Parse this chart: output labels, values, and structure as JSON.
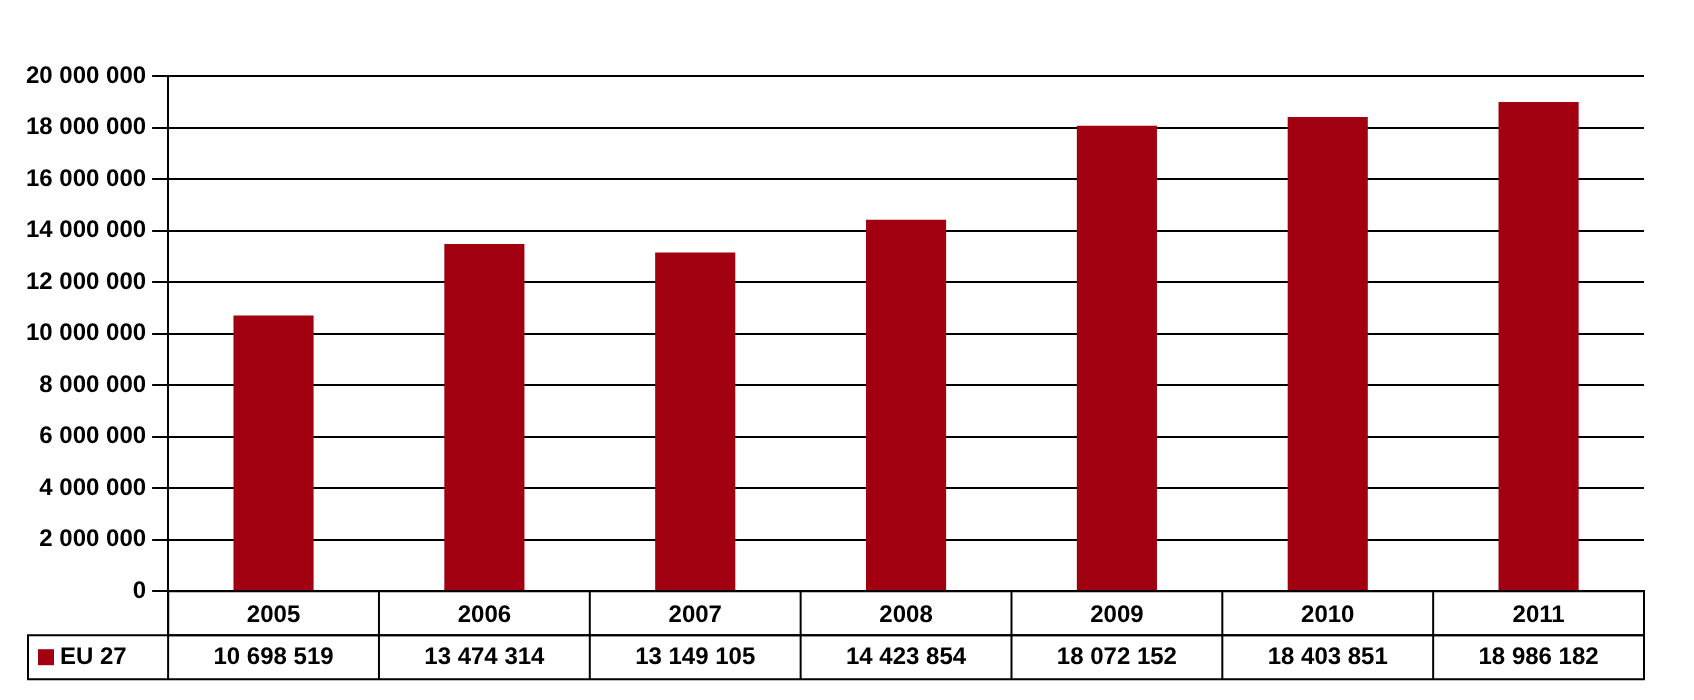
{
  "chart_data": {
    "type": "bar",
    "categories": [
      "2005",
      "2006",
      "2007",
      "2008",
      "2009",
      "2010",
      "2011"
    ],
    "series": [
      {
        "name": "EU 27",
        "color": "#a0000f",
        "values": [
          10698519,
          13474314,
          13149105,
          14423854,
          18072152,
          18403851,
          18986182
        ]
      }
    ],
    "value_labels": [
      "10 698 519",
      "13 474 314",
      "13 149 105",
      "14 423 854",
      "18 072 152",
      "18 403 851",
      "18 986 182"
    ],
    "ylim": [
      0,
      20000000
    ],
    "yticks": [
      {
        "value": 0,
        "label": "0"
      },
      {
        "value": 2000000,
        "label": "2 000 000"
      },
      {
        "value": 4000000,
        "label": "4 000 000"
      },
      {
        "value": 6000000,
        "label": "6 000 000"
      },
      {
        "value": 8000000,
        "label": "8 000 000"
      },
      {
        "value": 10000000,
        "label": "10 000 000"
      },
      {
        "value": 12000000,
        "label": "12 000 000"
      },
      {
        "value": 14000000,
        "label": "14 000 000"
      },
      {
        "value": 16000000,
        "label": "16 000 000"
      },
      {
        "value": 18000000,
        "label": "18 000 000"
      },
      {
        "value": 20000000,
        "label": "20 000 000"
      }
    ],
    "grid": "y",
    "legend": "bottom left"
  }
}
